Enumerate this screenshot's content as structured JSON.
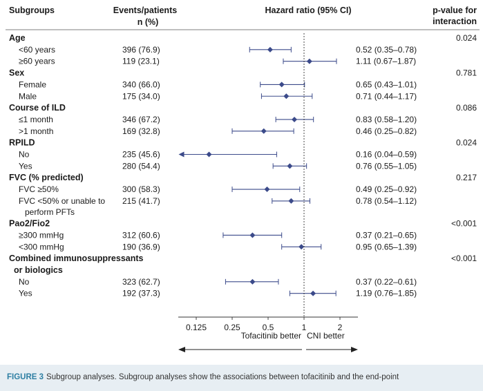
{
  "headers": {
    "subgroups": "Subgroups",
    "events_line1": "Events/patients",
    "events_line2": "n (%)",
    "hr": "Hazard ratio (95% CI)",
    "pval_line1": "p-value for",
    "pval_line2": "interaction"
  },
  "caption": {
    "label": "FIGURE 3",
    "text": "Subgroup analyses. Subgroup analyses show the associations between tofacitinib and the end-point"
  },
  "chart_data": {
    "type": "forest",
    "x_scale": "log2",
    "xlim": [
      0.0884,
      2.828
    ],
    "x_ticks": [
      "0.125",
      "0.25",
      "0.5",
      "1",
      "2"
    ],
    "x_tick_values": [
      0.125,
      0.25,
      0.5,
      1,
      2
    ],
    "reference_line": 1,
    "arrow_left_label": "Tofacitinib better",
    "arrow_right_label": "CNI better",
    "marker_color": "#3b4a8a",
    "groups": [
      {
        "title": "Age",
        "p_interaction": "0.024",
        "rows": [
          {
            "label": "<60 years",
            "n": "396 (76.9)",
            "hr": 0.52,
            "lo": 0.35,
            "hi": 0.78,
            "text": "0.52 (0.35–0.78)"
          },
          {
            "label": "≥60 years",
            "n": "119 (23.1)",
            "hr": 1.11,
            "lo": 0.67,
            "hi": 1.87,
            "text": "1.11 (0.67–1.87)"
          }
        ]
      },
      {
        "title": "Sex",
        "p_interaction": "0.781",
        "rows": [
          {
            "label": "Female",
            "n": "340 (66.0)",
            "hr": 0.65,
            "lo": 0.43,
            "hi": 1.01,
            "text": "0.65 (0.43–1.01)"
          },
          {
            "label": "Male",
            "n": "175 (34.0)",
            "hr": 0.71,
            "lo": 0.44,
            "hi": 1.17,
            "text": "0.71 (0.44–1.17)"
          }
        ]
      },
      {
        "title": "Course of ILD",
        "p_interaction": "0.086",
        "rows": [
          {
            "label": "≤1 month",
            "n": "346 (67.2)",
            "hr": 0.83,
            "lo": 0.58,
            "hi": 1.2,
            "text": "0.83 (0.58–1.20)"
          },
          {
            "label": ">1 month",
            "n": "169 (32.8)",
            "hr": 0.46,
            "lo": 0.25,
            "hi": 0.82,
            "text": "0.46 (0.25–0.82)"
          }
        ]
      },
      {
        "title": "RPILD",
        "p_interaction": "0.024",
        "rows": [
          {
            "label": "No",
            "n": "235 (45.6)",
            "hr": 0.16,
            "lo": 0.04,
            "hi": 0.59,
            "text": "0.16 (0.04–0.59)",
            "clipped_low": true
          },
          {
            "label": "Yes",
            "n": "280 (54.4)",
            "hr": 0.76,
            "lo": 0.55,
            "hi": 1.05,
            "text": "0.76 (0.55–1.05)"
          }
        ]
      },
      {
        "title": "FVC (% predicted)",
        "p_interaction": "0.217",
        "rows": [
          {
            "label": "FVC ≥50%",
            "n": "300 (58.3)",
            "hr": 0.49,
            "lo": 0.25,
            "hi": 0.92,
            "text": "0.49 (0.25–0.92)"
          },
          {
            "label": "FVC <50% or unable to",
            "label2": "perform PFTs",
            "n": "215 (41.7)",
            "hr": 0.78,
            "lo": 0.54,
            "hi": 1.12,
            "text": "0.78 (0.54–1.12)"
          }
        ]
      },
      {
        "title": "Pao2/Fio2",
        "title_html": true,
        "p_interaction": "<0.001",
        "rows": [
          {
            "label": "≥300 mmHg",
            "n": "312 (60.6)",
            "hr": 0.37,
            "lo": 0.21,
            "hi": 0.65,
            "text": "0.37 (0.21–0.65)"
          },
          {
            "label": "<300 mmHg",
            "n": "190 (36.9)",
            "hr": 0.95,
            "lo": 0.65,
            "hi": 1.39,
            "text": "0.95 (0.65–1.39)"
          }
        ]
      },
      {
        "title": "Combined immunosuppressants",
        "title2": "or biologics",
        "p_interaction": "<0.001",
        "rows": [
          {
            "label": "No",
            "n": "323 (62.7)",
            "hr": 0.37,
            "lo": 0.22,
            "hi": 0.61,
            "text": "0.37 (0.22–0.61)"
          },
          {
            "label": "Yes",
            "n": "192 (37.3)",
            "hr": 1.19,
            "lo": 0.76,
            "hi": 1.85,
            "text": "1.19 (0.76–1.85)"
          }
        ]
      }
    ]
  }
}
